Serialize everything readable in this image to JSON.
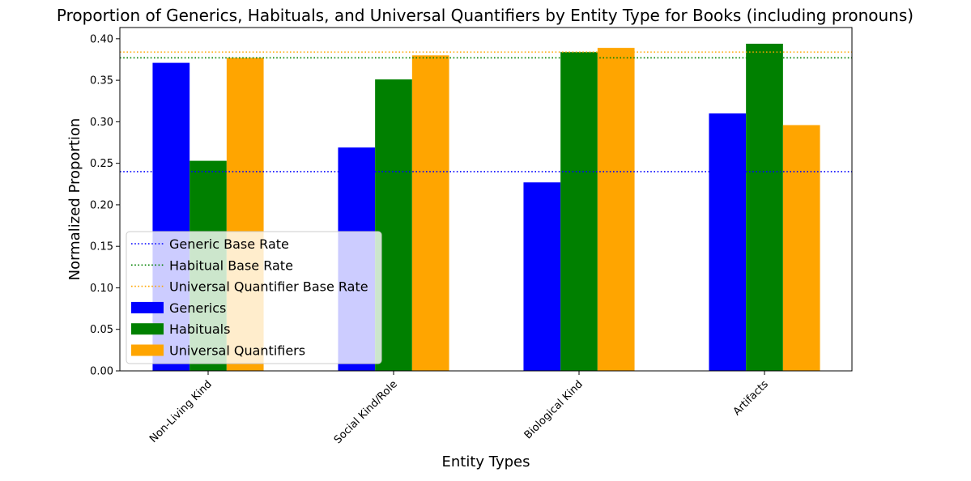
{
  "chart_data": {
    "type": "bar",
    "title": "Proportion of Generics, Habituals, and Universal Quantifiers by Entity Type for Books (including pronouns)",
    "xlabel": "Entity Types",
    "ylabel": "Normalized Proportion",
    "categories": [
      "Non-Living Kind",
      "Social Kind/Role",
      "Biological Kind",
      "Artifacts"
    ],
    "ylim": [
      0,
      0.4135
    ],
    "yticks": [
      "0.00",
      "0.05",
      "0.10",
      "0.15",
      "0.20",
      "0.25",
      "0.30",
      "0.35",
      "0.40"
    ],
    "series": [
      {
        "name": "Generics",
        "color": "#0000ff",
        "values": [
          0.371,
          0.269,
          0.227,
          0.31
        ]
      },
      {
        "name": "Habituals",
        "color": "#008000",
        "values": [
          0.253,
          0.351,
          0.384,
          0.394
        ]
      },
      {
        "name": "Universal Quantifiers",
        "color": "#ffa500",
        "values": [
          0.377,
          0.38,
          0.389,
          0.296
        ]
      }
    ],
    "baselines": [
      {
        "name": "Generic Base Rate",
        "color": "#0000ff",
        "value": 0.24
      },
      {
        "name": "Habitual Base Rate",
        "color": "#008000",
        "value": 0.377
      },
      {
        "name": "Universal Quantifier Base Rate",
        "color": "#ffa500",
        "value": 0.384
      }
    ],
    "grid": false,
    "legend_position": "lower-left"
  }
}
